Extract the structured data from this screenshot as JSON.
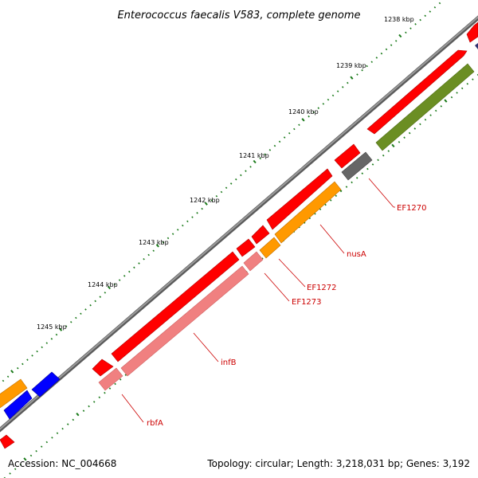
{
  "title": "Enterococcus faecalis V583, complete genome",
  "footer": {
    "accession": "Accession: NC_004668",
    "summary": "Topology: circular; Length: 3,218,031 bp; Genes: 3,192"
  },
  "tick_labels": [
    "1238 kbp",
    "1239 kbp",
    "1240 kbp",
    "1241 kbp",
    "1242 kbp",
    "1243 kbp",
    "1244 kbp",
    "1245 kbp"
  ],
  "gene_labels": [
    "EF1270",
    "nusA",
    "EF1272",
    "EF1273",
    "infB",
    "rbfA"
  ],
  "colors": {
    "backbone": "#808080",
    "cds": "#ff0000",
    "cds_light": "#f08080",
    "orange": "#ff9900",
    "olive": "#6b8e23",
    "gray": "#666666",
    "blue": "#0000ff",
    "navy": "#303070",
    "tick": "#1a7a1a",
    "label": "#cc0000"
  }
}
